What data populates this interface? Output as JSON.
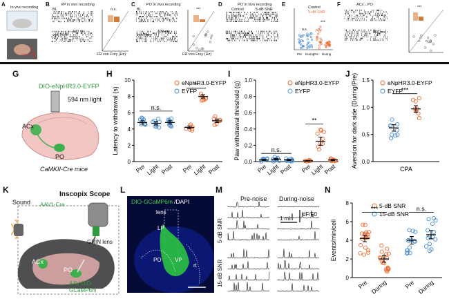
{
  "top_row": {
    "A": {
      "letter": "A",
      "title": "In vivo recording",
      "label": "von Frey"
    },
    "B": {
      "letter": "B",
      "title": "VP in vivo recording",
      "bl": "BL",
      "vf": "von Frey",
      "scale": "100 ms",
      "ylabel": "FR BL (Hz)",
      "xlabel": "FR von Frey (Hz)",
      "sig": "n.s."
    },
    "C": {
      "letter": "C",
      "title": "PO in vivo recording",
      "bl": "BL",
      "vf": "von Frey",
      "scale": "100 ms",
      "ylabel": "FR BL (Hz)",
      "xlabel": "FR von Frey (Hz)",
      "sig": "***"
    },
    "D": {
      "letter": "D",
      "title": "PO in vivo recording",
      "left": "Control",
      "right": "5-dB SNR",
      "rows": [
        "Pre-noise",
        "During"
      ]
    },
    "E": {
      "letter": "E",
      "ylabel": "Firing Rate (Hz)",
      "legend": [
        "Control",
        "5-dB SNR"
      ],
      "sig1": "n.s.",
      "sig2": "***",
      "ticks": [
        "Pre",
        "During",
        "Pre",
        "During"
      ]
    },
    "F": {
      "letter": "F",
      "title": "ACx→PO",
      "rows": [
        "Pre-light",
        "Light-On"
      ],
      "scale": "100 ms",
      "ylabel": "FR Light On (Hz)",
      "xlabel": "FR Pre-light (Hz)",
      "sig": "***"
    }
  },
  "G": {
    "letter": "G",
    "virus": "DIO-eNpHR3.0-EYFP",
    "light": "594 nm light",
    "acx": "ACx",
    "po": "PO",
    "mice": "CaMKII-Cre mice"
  },
  "H": {
    "letter": "H",
    "ylabel": "Latency to withdrawal (s)",
    "ticks": [
      "0",
      "2",
      "4",
      "6",
      "8",
      "10"
    ],
    "legend": [
      "eNpHR3.0-EYFP",
      "EYFP"
    ],
    "sig1": "n.s.",
    "sig2": "**",
    "xticks": [
      "Pre",
      "Light",
      "Post",
      "Pre",
      "Light",
      "Post"
    ]
  },
  "I": {
    "letter": "I",
    "ylabel": "Paw withdrawal threshold (g)",
    "ticks": [
      "0.0",
      "0.2",
      "0.4",
      "0.6",
      "0.8",
      "1.0"
    ],
    "legend": [
      "eNpHR3.0-EYFP",
      "EYFP"
    ],
    "sig1": "n.s.",
    "sig2": "**",
    "xticks": [
      "Pre",
      "Light",
      "Post",
      "Pre",
      "Light",
      "Post"
    ]
  },
  "J": {
    "letter": "J",
    "ylabel": "Aversion for dark side (During/Pre)",
    "ticks": [
      "0.0",
      "0.5",
      "1.0",
      "1.5"
    ],
    "legend": [
      "eNpHR3.0-EYFP",
      "EYFP"
    ],
    "sig": "***",
    "xlabel": "CPA"
  },
  "K": {
    "letter": "K",
    "sound": "Sound",
    "scope": "Inscopix Scope",
    "virus": "AAV1-Cre",
    "grin": "GRIN lens",
    "acx": "ACx",
    "po": "PO",
    "aav": "AAV-DIO-",
    "gcamp": "GCaMP6m"
  },
  "L": {
    "letter": "L",
    "title1": "DIO-GCaMP6m",
    "title2": "/DAPI",
    "lens": "lens",
    "lp": "LP",
    "po": "PO",
    "vp": "VP",
    "rt": "rt"
  },
  "M": {
    "letter": "M",
    "pre": "Pre-noise",
    "during": "During-noise",
    "scale_t": "1 min",
    "scale_f": "dF/F0",
    "snr5": "5-dB SNR",
    "snr15": "15-dB SNR"
  },
  "N": {
    "letter": "N",
    "ylabel": "Events/min/cell",
    "ticks": [
      "0",
      "2",
      "4",
      "6",
      "8"
    ],
    "legend": [
      "5-dB SNR",
      "15-dB SNR"
    ],
    "sig1": "***",
    "sig2": "n.s.",
    "xticks": [
      "Pre",
      "During",
      "Pre",
      "During"
    ]
  },
  "colors": {
    "orange": "#e8703a",
    "blue": "#4a8fd0"
  },
  "chart_data": [
    {
      "type": "scatter",
      "panel": "H",
      "ylabel": "Latency to withdrawal (s)",
      "ylim": [
        0,
        10
      ],
      "categories": [
        "Pre",
        "Light",
        "Post",
        "Pre",
        "Light",
        "Post"
      ],
      "series": [
        {
          "name": "eNpHR3.0-EYFP",
          "means": [
            null,
            null,
            null,
            4.2,
            8.0,
            5.0
          ]
        },
        {
          "name": "EYFP",
          "means": [
            4.8,
            4.7,
            4.8,
            null,
            null,
            null
          ]
        }
      ]
    },
    {
      "type": "scatter",
      "panel": "I",
      "ylabel": "Paw withdrawal threshold (g)",
      "ylim": [
        0,
        1.0
      ],
      "categories": [
        "Pre",
        "Light",
        "Post",
        "Pre",
        "Light",
        "Post"
      ],
      "series": [
        {
          "name": "eNpHR3.0-EYFP",
          "means": [
            null,
            null,
            null,
            0.01,
            0.25,
            0.02
          ]
        },
        {
          "name": "EYFP",
          "means": [
            0.02,
            0.03,
            0.02,
            null,
            null,
            null
          ]
        }
      ]
    },
    {
      "type": "scatter",
      "panel": "J",
      "ylabel": "Aversion for dark side (During/Pre)",
      "ylim": [
        0,
        1.5
      ],
      "categories": [
        "CPA"
      ],
      "series": [
        {
          "name": "EYFP",
          "means": [
            0.62
          ]
        },
        {
          "name": "eNpHR3.0-EYFP",
          "means": [
            0.97
          ]
        }
      ]
    },
    {
      "type": "scatter",
      "panel": "N",
      "ylabel": "Events/min/cell",
      "ylim": [
        0,
        8
      ],
      "categories": [
        "Pre",
        "During",
        "Pre",
        "During"
      ],
      "series": [
        {
          "name": "5-dB SNR",
          "means": [
            4.2,
            2.0,
            null,
            null
          ]
        },
        {
          "name": "15-dB SNR",
          "means": [
            null,
            null,
            4.0,
            4.6
          ]
        }
      ]
    }
  ]
}
